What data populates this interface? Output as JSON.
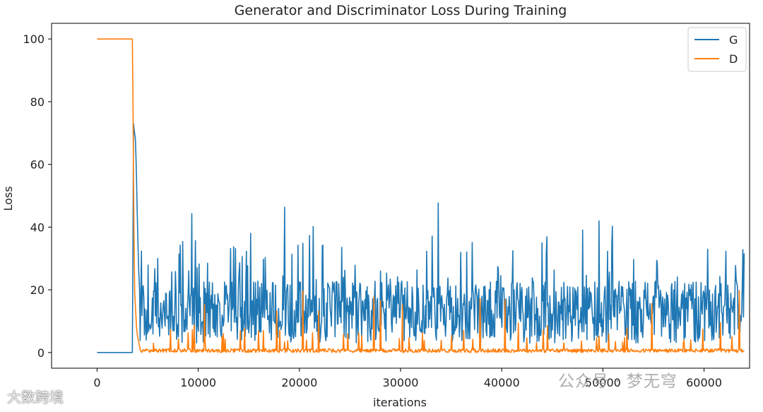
{
  "chart_data": {
    "type": "line",
    "title": "Generator and Discriminator Loss During Training",
    "xlabel": "iterations",
    "ylabel": "Loss",
    "xlim": [
      -4500,
      64500
    ],
    "ylim": [
      -5,
      105
    ],
    "xticks": [
      0,
      10000,
      20000,
      30000,
      40000,
      50000,
      60000
    ],
    "yticks": [
      0,
      20,
      40,
      60,
      80,
      100
    ],
    "grid": false,
    "legend": "top-right",
    "series": [
      {
        "name": "G",
        "color": "#1f77b4",
        "description_of_shape": "0 until ~3500, spikes to ~72 at ~3700, then noisy 3-30 with peaks up to ~49",
        "x": [
          0,
          3400,
          3500,
          3600,
          3700,
          3800,
          3900,
          4000,
          4100,
          4200,
          4400,
          4600,
          5000,
          6000,
          8000,
          10000,
          12000,
          13000,
          15000,
          17000,
          20000,
          22000,
          25000,
          26500,
          28000,
          30000,
          31000,
          32500,
          34000,
          36000,
          37000,
          38500,
          40000,
          41000,
          42000,
          43500,
          45000,
          47000,
          48500,
          50000,
          52000,
          54000,
          56000,
          57000,
          59000,
          61000,
          62500,
          63500,
          64000
        ],
        "y": [
          0,
          0,
          0,
          73,
          70,
          68,
          55,
          40,
          27,
          20,
          15,
          12,
          11,
          12,
          13,
          12,
          13,
          14,
          13,
          12,
          12,
          13,
          12,
          13,
          13,
          12,
          13,
          14,
          13,
          12,
          13,
          14,
          13,
          14,
          13,
          13,
          13,
          12,
          13,
          13,
          12,
          13,
          13,
          12,
          13,
          12,
          13,
          13,
          13
        ]
      },
      {
        "name": "D",
        "color": "#ff7f0e",
        "description_of_shape": "100 until ~3500, drops to ~80 then near 0 with occasional spikes up to ~20",
        "x": [
          0,
          3500,
          3550,
          3600,
          3700,
          3800,
          3900,
          4000,
          4200,
          4500,
          5000,
          10000,
          15000,
          20000,
          25000,
          30000,
          35000,
          40000,
          45000,
          50000,
          55000,
          60000,
          64000
        ],
        "y": [
          100,
          100,
          80,
          55,
          20,
          14,
          8,
          5,
          2,
          1,
          0.5,
          0.5,
          0.6,
          0.5,
          0.5,
          0.6,
          0.5,
          0.6,
          0.5,
          0.5,
          0.6,
          0.5,
          0.5
        ]
      }
    ]
  },
  "watermarks": {
    "account": "公众号 · 梦无穹",
    "site": "大数跨境"
  }
}
